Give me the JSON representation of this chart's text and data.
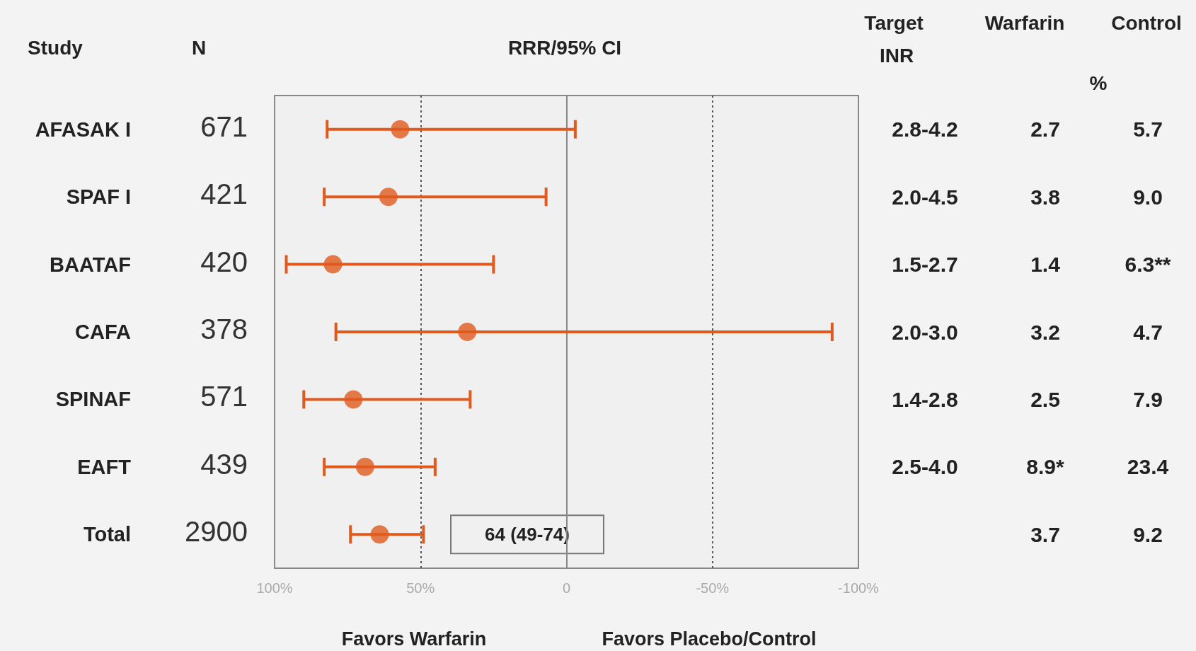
{
  "chart_data": {
    "type": "scatter",
    "orientation": "horizontal",
    "title": "RRR/95% CI",
    "categories": [
      "AFASAK I",
      "SPAF I",
      "BAATAF",
      "CAFA",
      "SPINAF",
      "EAFT",
      "Total"
    ],
    "values": [
      57,
      61,
      80,
      34,
      73,
      69,
      64
    ],
    "errors": [
      [
        -3,
        82
      ],
      [
        7,
        83
      ],
      [
        25,
        96
      ],
      [
        -91,
        79
      ],
      [
        33,
        90
      ],
      [
        45,
        83
      ],
      [
        49,
        74
      ]
    ],
    "color": "#e05a1e",
    "marker": "circle",
    "xlim": [
      100,
      -100
    ],
    "xticks": [
      {
        "value": 100,
        "label": "100%"
      },
      {
        "value": 50,
        "label": "50%"
      },
      0,
      {
        "value": -50,
        "label": "-50%"
      },
      {
        "value": -100,
        "label": "-100%"
      }
    ],
    "grid": false,
    "ref_lines": [
      {
        "axis": "x",
        "value": 50,
        "line_style": "dotted",
        "color": "#555555"
      },
      {
        "axis": "x",
        "value": 0,
        "line_style": "solid",
        "color": "#888888"
      },
      {
        "axis": "x",
        "value": -50,
        "line_style": "dotted",
        "color": "#555555"
      }
    ],
    "annotations": [
      "Study",
      "N",
      "Target INR",
      "Warfarin",
      "Control",
      "%",
      "Favors Warfarin",
      "Favors Placebo/Control",
      "64 (49-74)",
      "671",
      "421",
      "420",
      "378",
      "571",
      "439",
      "2900",
      "2.8-4.2",
      "2.0-4.5",
      "1.5-2.7",
      "2.0-3.0",
      "1.4-2.8",
      "2.5-4.0",
      "2.7",
      "3.8",
      "1.4",
      "3.2",
      "2.5",
      "8.9*",
      "3.7",
      "5.7",
      "9.0",
      "6.3**",
      "4.7",
      "7.9",
      "23.4",
      "9.2"
    ]
  }
}
